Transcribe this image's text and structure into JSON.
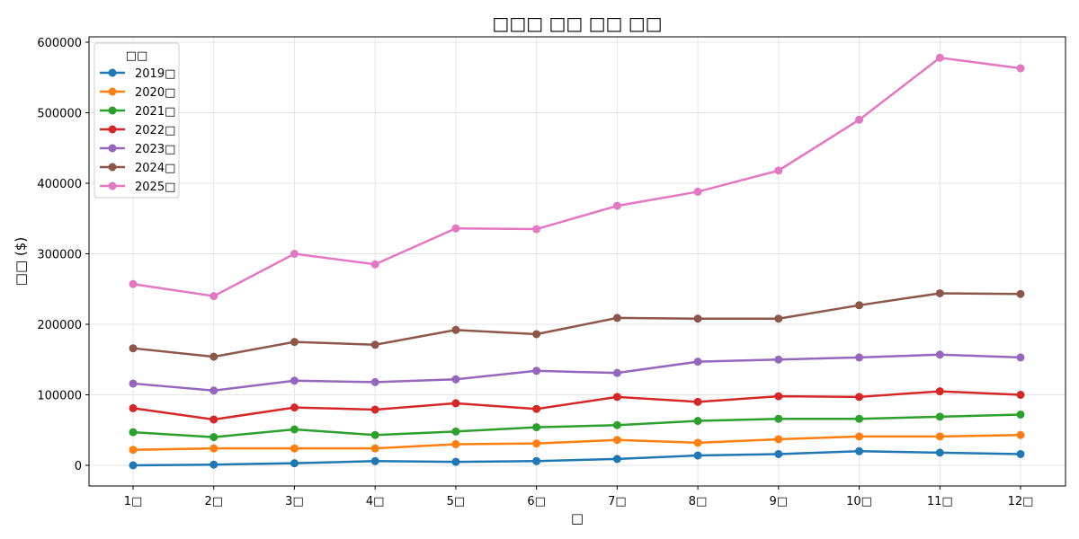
{
  "chart_data": {
    "type": "line",
    "title": "□□□ □□ □□ □□",
    "xlabel": "□",
    "ylabel": "□□ ($)",
    "categories": [
      "1□",
      "2□",
      "3□",
      "4□",
      "5□",
      "6□",
      "7□",
      "8□",
      "9□",
      "10□",
      "11□",
      "12□"
    ],
    "y_ticks": [
      0,
      100000,
      200000,
      300000,
      400000,
      500000,
      600000
    ],
    "ylim": [
      -30000,
      607000
    ],
    "grid": true,
    "legend": {
      "title": "□□",
      "position": "upper left"
    },
    "series": [
      {
        "name": "2019□",
        "color": "#1f77b4",
        "values": [
          0,
          1000,
          3000,
          6000,
          5000,
          6000,
          9000,
          14000,
          16000,
          20000,
          18000,
          16000
        ]
      },
      {
        "name": "2020□",
        "color": "#ff7f0e",
        "values": [
          22000,
          24000,
          24000,
          24000,
          30000,
          31000,
          36000,
          32000,
          37000,
          41000,
          41000,
          43000
        ]
      },
      {
        "name": "2021□",
        "color": "#2ca02c",
        "values": [
          47000,
          40000,
          51000,
          43000,
          48000,
          54000,
          57000,
          63000,
          66000,
          66000,
          69000,
          72000
        ]
      },
      {
        "name": "2022□",
        "color": "#d62728",
        "values": [
          81000,
          65000,
          82000,
          79000,
          88000,
          80000,
          97000,
          90000,
          98000,
          97000,
          105000,
          100000
        ]
      },
      {
        "name": "2023□",
        "color": "#9467bd",
        "values": [
          116000,
          106000,
          120000,
          118000,
          122000,
          134000,
          131000,
          147000,
          150000,
          153000,
          157000,
          153000
        ]
      },
      {
        "name": "2024□",
        "color": "#8c564b",
        "values": [
          166000,
          154000,
          175000,
          171000,
          192000,
          186000,
          209000,
          208000,
          208000,
          227000,
          244000,
          243000
        ]
      },
      {
        "name": "2025□",
        "color": "#e377c2",
        "values": [
          257000,
          240000,
          300000,
          285000,
          336000,
          335000,
          368000,
          388000,
          418000,
          490000,
          578000,
          563000
        ]
      }
    ]
  }
}
